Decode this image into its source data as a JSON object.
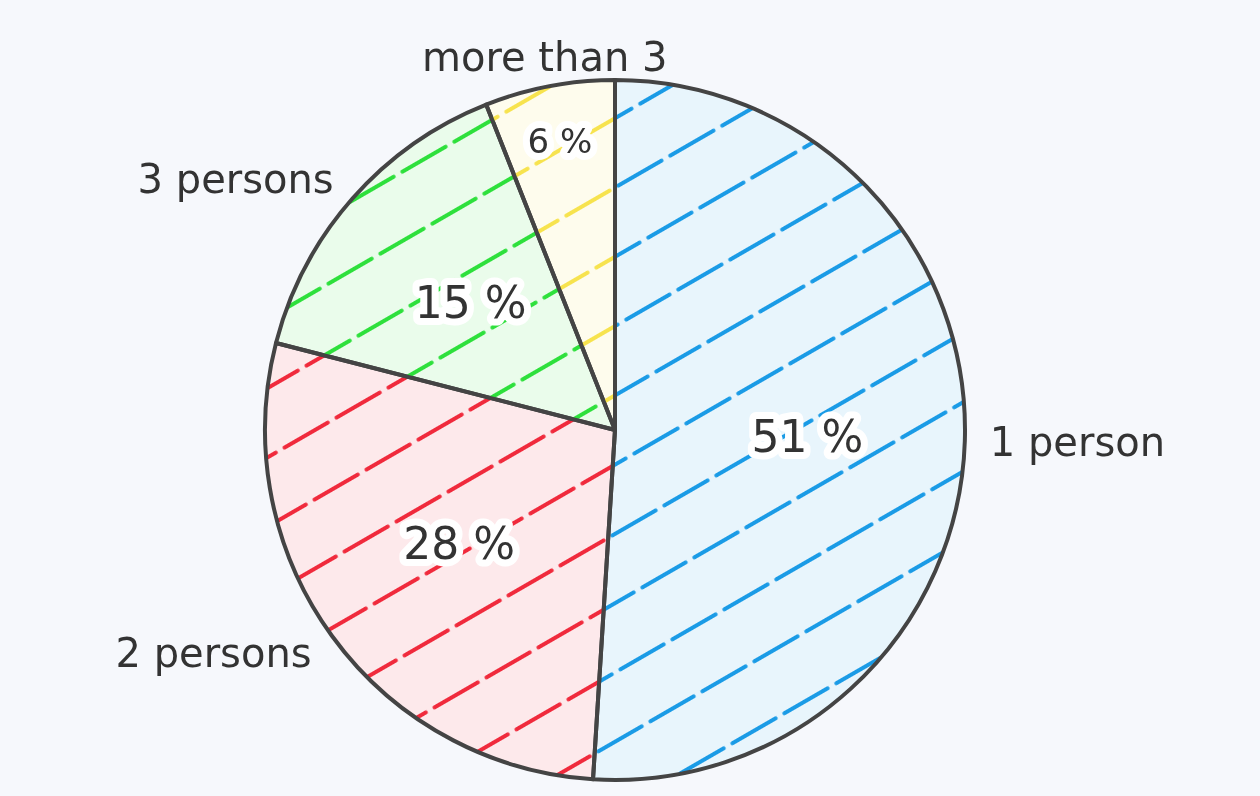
{
  "chart_data": {
    "type": "pie",
    "categories": [
      "1 person",
      "2 persons",
      "3 persons",
      "more than 3"
    ],
    "values": [
      51,
      28,
      15,
      6
    ],
    "value_labels": [
      "51 %",
      "28 %",
      "15 %",
      "6 %"
    ],
    "colors": [
      "#1a9be6",
      "#f02a3c",
      "#2ee03c",
      "#f7e34e"
    ]
  }
}
